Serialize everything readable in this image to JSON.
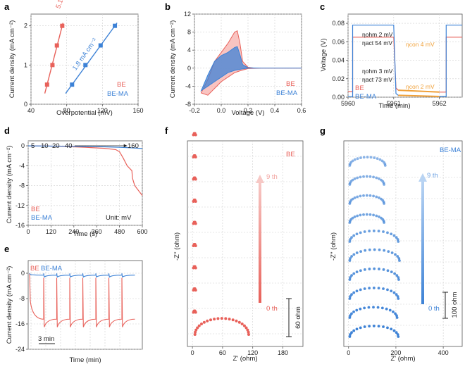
{
  "colors": {
    "be": "#e8615a",
    "bema": "#3d82d6",
    "be_light": "#f7b5b1",
    "bema_light": "#9ec3ee",
    "orange": "#f0a13a",
    "grid": "#cfcfcf"
  },
  "chart_data": [
    {
      "id": "a",
      "panel_label": "a",
      "type": "scatter",
      "xlabel": "Overpotential (mV)",
      "ylabel": "Current density (mA cm⁻²)",
      "xlim": [
        40,
        160
      ],
      "ylim": [
        0,
        2.3
      ],
      "xticks": [
        "40",
        "80",
        "120",
        "160"
      ],
      "yticks": [
        "0",
        "1",
        "2"
      ],
      "series": [
        {
          "name": "BE",
          "slope_label": "5.1 mA cm⁻²",
          "x": [
            58,
            64,
            69,
            75
          ],
          "y": [
            0.5,
            1.0,
            1.5,
            2.0
          ]
        },
        {
          "name": "BE-MA",
          "slope_label": "1.8 mA cm⁻²",
          "x": [
            86,
            101,
            118,
            134
          ],
          "y": [
            0.5,
            1.0,
            1.5,
            2.0
          ]
        }
      ],
      "legend": [
        "BE",
        "BE-MA"
      ]
    },
    {
      "id": "b",
      "panel_label": "b",
      "type": "line",
      "xlabel": "Voltage (V)",
      "ylabel": "Current density (mA cm⁻²)",
      "xlim": [
        -0.2,
        0.6
      ],
      "ylim": [
        -8,
        12
      ],
      "xticks": [
        "-0.2",
        "0.0",
        "0.2",
        "0.4",
        "0.6"
      ],
      "yticks": [
        "-8",
        "-4",
        "0",
        "4",
        "8",
        "12"
      ],
      "series": [
        {
          "name": "BE",
          "x": [
            -0.15,
            -0.1,
            -0.05,
            0.0,
            0.05,
            0.1,
            0.12,
            0.14,
            0.16,
            0.2,
            0.25,
            0.3,
            0.6,
            0.3,
            0.2,
            0.15,
            0.1,
            0.05,
            0.0,
            -0.05,
            -0.1,
            -0.15
          ],
          "y": [
            -5.5,
            -2.5,
            1.5,
            3.5,
            5.5,
            8.0,
            8.3,
            5.5,
            1.5,
            0.2,
            0.0,
            0.0,
            0.0,
            0.0,
            -0.1,
            -0.5,
            -1.0,
            -2.0,
            -3.0,
            -4.5,
            -6.0,
            -5.5
          ]
        },
        {
          "name": "BE-MA",
          "x": [
            -0.15,
            -0.1,
            -0.05,
            0.0,
            0.05,
            0.1,
            0.12,
            0.14,
            0.16,
            0.2,
            0.3,
            0.6,
            0.3,
            0.2,
            0.15,
            0.1,
            0.05,
            0.0,
            -0.05,
            -0.1,
            -0.15
          ],
          "y": [
            -5.0,
            -1.5,
            1.5,
            2.8,
            3.5,
            4.6,
            4.8,
            3.0,
            0.8,
            0.1,
            0.0,
            0.0,
            0.0,
            0.0,
            -0.2,
            -0.5,
            -1.0,
            -2.0,
            -3.0,
            -4.0,
            -5.0
          ]
        }
      ],
      "legend": [
        "BE",
        "BE-MA"
      ]
    },
    {
      "id": "c",
      "panel_label": "c",
      "type": "line",
      "xlabel": "Time (min)",
      "ylabel": "Voltage (V)",
      "xlim": [
        5960,
        5962.5
      ],
      "ylim": [
        0,
        0.09
      ],
      "xticks": [
        "5960",
        "5961",
        "5962"
      ],
      "yticks": [
        "0.00",
        "0.02",
        "0.04",
        "0.06",
        "0.08"
      ],
      "series": [
        {
          "name": "BE",
          "x": [
            5960,
            5960.1,
            5960.1,
            5961.0,
            5961.05,
            5961.1,
            5962.0,
            5962.15,
            5962.15,
            5962.5
          ],
          "y": [
            0.006,
            0.006,
            0.065,
            0.065,
            0.01,
            0.0075,
            0.0055,
            0.0055,
            0.065,
            0.065
          ]
        },
        {
          "name": "BE-MA",
          "x": [
            5960,
            5960.1,
            5960.1,
            5961.0,
            5961.05,
            5961.1,
            5962.0,
            5962.15,
            5962.15,
            5962.5
          ],
          "y": [
            0.0005,
            0.0005,
            0.078,
            0.078,
            0.004,
            0.002,
            0.0008,
            0.0008,
            0.078,
            0.078
          ]
        }
      ],
      "annotations": {
        "be_ohm": "ηohm 2 mV",
        "be_act": "ηact 54 mV",
        "be_con": "ηcon 4 mV",
        "bema_ohm": "ηohm 3 mV",
        "bema_act": "ηact 73 mV",
        "bema_con": "ηcon 2 mV"
      },
      "legend": [
        "BE",
        "BE-MA"
      ]
    },
    {
      "id": "d",
      "panel_label": "d",
      "type": "line",
      "xlabel": "Time (s)",
      "ylabel": "Current density (mA cm⁻²)",
      "xlim": [
        0,
        600
      ],
      "ylim": [
        -16,
        1
      ],
      "xticks": [
        "0",
        "120",
        "240",
        "360",
        "480",
        "600"
      ],
      "yticks": [
        "0",
        "-4",
        "-8",
        "-12",
        "-16"
      ],
      "step_labels": [
        "5",
        "10",
        "20",
        "40",
        "160"
      ],
      "unit_note": "Unit: mV",
      "series": [
        {
          "name": "BE",
          "x": [
            0,
            100,
            200,
            300,
            400,
            460,
            480,
            500,
            520,
            545,
            548,
            560,
            580,
            600
          ],
          "y": [
            0,
            -0.05,
            -0.15,
            -0.3,
            -0.5,
            -0.75,
            -1.2,
            -2.5,
            -4.0,
            -5.0,
            -6.5,
            -8.0,
            -9.0,
            -10.0
          ]
        },
        {
          "name": "BE-MA",
          "x": [
            0,
            100,
            200,
            300,
            400,
            480,
            540,
            600
          ],
          "y": [
            0,
            -0.05,
            -0.1,
            -0.15,
            -0.2,
            -0.3,
            -0.4,
            -0.55
          ]
        }
      ],
      "legend": [
        "BE",
        "BE-MA"
      ]
    },
    {
      "id": "e",
      "panel_label": "e",
      "type": "line",
      "xlabel": "Time (min)",
      "ylabel": "Current density (mA cm⁻²)",
      "ylim": [
        -24,
        4
      ],
      "yticks": [
        "0",
        "-8",
        "-16",
        "-24"
      ],
      "scale_bar_label": "3 min",
      "series": [
        {
          "name": "BE",
          "pulses": 8,
          "plateau": -14.5,
          "spike": -17.0,
          "initial": 0
        },
        {
          "name": "BE-MA",
          "pulses": 8,
          "plateau": -0.6,
          "spike": -1.2,
          "initial": 0
        }
      ],
      "legend": [
        "BE",
        "BE-MA"
      ]
    },
    {
      "id": "f",
      "panel_label": "f",
      "type": "scatter",
      "xlabel": "Z' (ohm)",
      "ylabel": "-Z'' (ohm)",
      "xlim": [
        -10,
        220
      ],
      "xticks": [
        "0",
        "60",
        "120",
        "180"
      ],
      "series_name": "BE",
      "arrow_top": "9 th",
      "arrow_bottom": "0 th",
      "scale_bar_label": "60 ohm",
      "arc": {
        "series": "0 th",
        "x0": 5,
        "x1": 112,
        "peak": 32
      },
      "offset_points": 9
    },
    {
      "id": "g",
      "panel_label": "g",
      "type": "scatter",
      "xlabel": "Z' (ohm)",
      "ylabel": "-Z'' (ohm)",
      "xlim": [
        -20,
        480
      ],
      "xticks": [
        "0",
        "200",
        "400"
      ],
      "series_name": "BE-MA",
      "arrow_top": "9 th",
      "arrow_bottom": "0 th",
      "scale_bar_label": "100 ohm",
      "arcs": [
        {
          "x1": 210,
          "peak": 82
        },
        {
          "x1": 205,
          "peak": 80
        },
        {
          "x1": 210,
          "peak": 82
        },
        {
          "x1": 212,
          "peak": 83
        },
        {
          "x1": 215,
          "peak": 84
        },
        {
          "x1": 210,
          "peak": 82
        },
        {
          "x1": 150,
          "peak": 62
        },
        {
          "x1": 150,
          "peak": 62
        },
        {
          "x1": 150,
          "peak": 62
        },
        {
          "x1": 155,
          "peak": 64
        }
      ]
    }
  ]
}
